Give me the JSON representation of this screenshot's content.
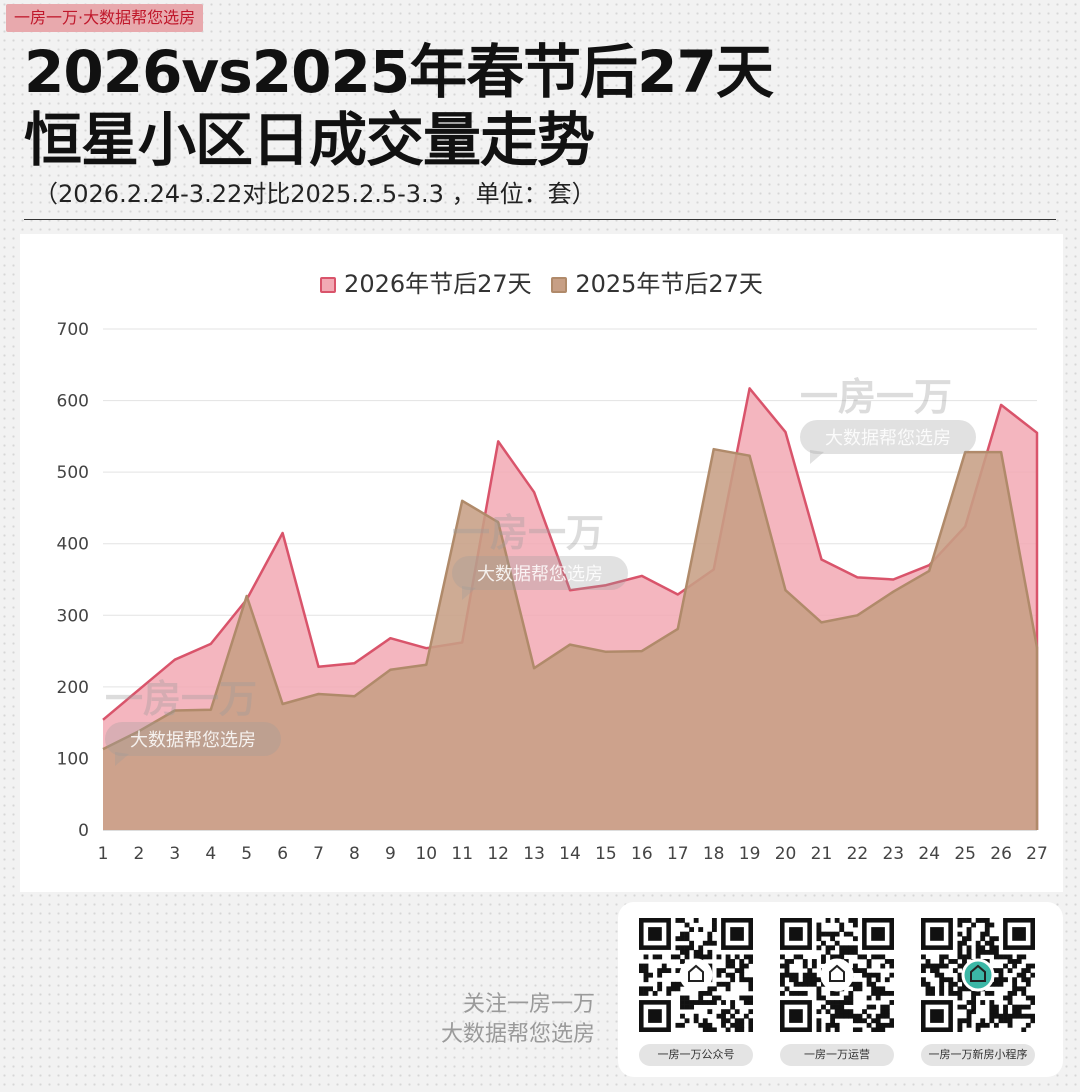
{
  "brand_tag": "一房一万·大数据帮您选房",
  "title_line1": "2026vs2025年春节后27天",
  "title_line2": "恒星小区日成交量走势",
  "subtitle": "（2026.2.24-3.22对比2025.2.5-3.3 ，单位：套）",
  "chart_data": {
    "type": "area",
    "categories": [
      "1",
      "2",
      "3",
      "4",
      "5",
      "6",
      "7",
      "8",
      "9",
      "10",
      "11",
      "12",
      "13",
      "14",
      "15",
      "16",
      "17",
      "18",
      "19",
      "20",
      "21",
      "22",
      "23",
      "24",
      "25",
      "26",
      "27"
    ],
    "ylim": [
      0,
      700
    ],
    "yticks": [
      0,
      100,
      200,
      300,
      400,
      500,
      600,
      700
    ],
    "grid": true,
    "legend": "top-center",
    "series": [
      {
        "name": "2026年节后27天",
        "color": "#d9546b",
        "fill": "#f2a9b4",
        "values": [
          154,
          196,
          238,
          260,
          322,
          415,
          228,
          233,
          268,
          254,
          262,
          543,
          472,
          335,
          342,
          355,
          329,
          364,
          617,
          556,
          378,
          353,
          350,
          370,
          424,
          594,
          555
        ]
      },
      {
        "name": "2025年节后27天",
        "color": "#b08a6a",
        "fill": "#c79f85",
        "values": [
          113,
          138,
          167,
          168,
          327,
          176,
          190,
          187,
          224,
          231,
          460,
          430,
          226,
          259,
          249,
          250,
          281,
          532,
          523,
          335,
          290,
          300,
          333,
          362,
          528,
          528,
          255
        ]
      }
    ]
  },
  "watermark": {
    "brand": "一房一万",
    "slogan": "大数据帮您选房"
  },
  "footer": {
    "follow_line1": "关注一房一万",
    "follow_line2": "大数据帮您选房",
    "qr_codes": [
      {
        "caption": "一房一万公众号",
        "icon": "house-logo-icon"
      },
      {
        "caption": "一房一万运营",
        "icon": "wechat-icon"
      },
      {
        "caption": "一房一万新房小程序",
        "icon": "mini-program-icon"
      }
    ]
  }
}
